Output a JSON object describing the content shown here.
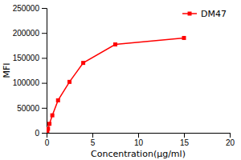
{
  "chart_data": {
    "type": "line",
    "x": [
      0.0098,
      0.0195,
      0.039,
      0.078,
      0.156,
      0.313,
      0.625,
      1.25,
      2.5,
      4.0,
      7.5,
      15.0
    ],
    "series": [
      {
        "name": "DM47",
        "color": "#FF0000",
        "marker": "square",
        "line_style": "solid",
        "values": [
          300,
          700,
          1500,
          3500,
          8000,
          18000,
          35000,
          65000,
          102000,
          140000,
          177000,
          190000
        ]
      }
    ],
    "xlabel": "Concentration(μg/ml)",
    "ylabel": "MFI",
    "xlim": [
      0,
      20
    ],
    "ylim": [
      0,
      250000
    ],
    "xticks": [
      0,
      5,
      10,
      15,
      20
    ],
    "yticks": [
      0,
      50000,
      100000,
      150000,
      200000,
      250000
    ],
    "grid": false,
    "legend": "upper right"
  }
}
